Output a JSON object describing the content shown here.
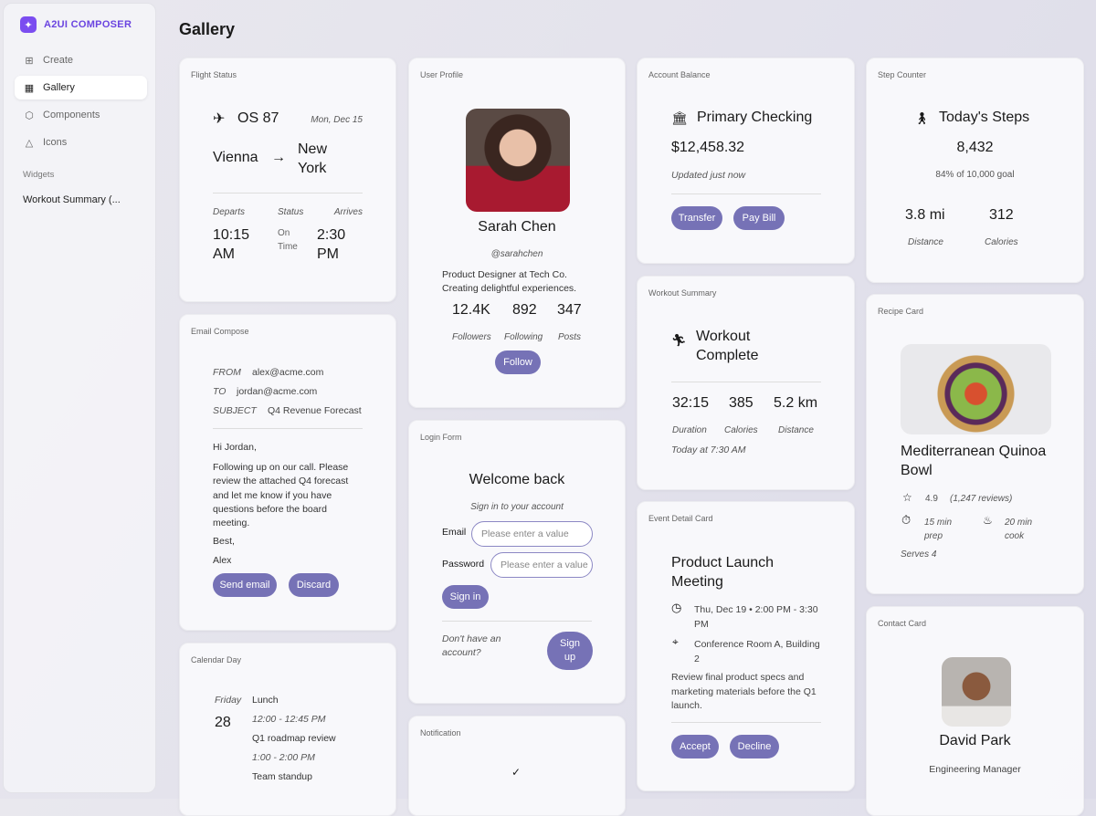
{
  "app": {
    "name": "A2UI COMPOSER",
    "logo_icon": "sparkle-icon"
  },
  "sidebar": {
    "items": [
      {
        "label": "Create",
        "icon": "plus-square-icon"
      },
      {
        "label": "Gallery",
        "icon": "grid-icon",
        "active": true
      },
      {
        "label": "Components",
        "icon": "cube-icon"
      },
      {
        "label": "Icons",
        "icon": "shapes-icon"
      }
    ],
    "section": "Widgets",
    "widgets": [
      "Workout Summary (..."
    ]
  },
  "page": {
    "title": "Gallery"
  },
  "accent": "#7672b6",
  "flight": {
    "title": "Flight Status",
    "number": "OS 87",
    "date": "Mon, Dec 15",
    "from": "Vienna",
    "to": "New York",
    "departs_label": "Departs",
    "status_label": "Status",
    "arrives_label": "Arrives",
    "departs": "10:15 AM",
    "status": "On Time",
    "arrives": "2:30 PM"
  },
  "email": {
    "title": "Email Compose",
    "from_label": "FROM",
    "from": "alex@acme.com",
    "to_label": "TO",
    "to": "jordan@acme.com",
    "subject_label": "SUBJECT",
    "subject": "Q4 Revenue Forecast",
    "greeting": "Hi Jordan,",
    "body": "Following up on our call. Please review the attached Q4 forecast and let me know if you have questions before the board meeting.",
    "closing": "Best,",
    "signature": "Alex",
    "send": "Send email",
    "discard": "Discard"
  },
  "calendar": {
    "title": "Calendar Day",
    "weekday": "Friday",
    "day": "28",
    "events": [
      {
        "name": "Lunch",
        "time": "12:00 - 12:45 PM"
      },
      {
        "name": "Q1 roadmap review",
        "time": "1:00 - 2:00 PM"
      },
      {
        "name": "Team standup"
      }
    ]
  },
  "profile": {
    "title": "User Profile",
    "name": "Sarah Chen",
    "handle": "@sarahchen",
    "bio": "Product Designer at Tech Co. Creating delightful experiences.",
    "stats": [
      {
        "value": "12.4K",
        "label": "Followers"
      },
      {
        "value": "892",
        "label": "Following"
      },
      {
        "value": "347",
        "label": "Posts"
      }
    ],
    "follow": "Follow"
  },
  "login": {
    "title": "Login Form",
    "heading": "Welcome back",
    "subheading": "Sign in to your account",
    "email_label": "Email",
    "email_placeholder": "Please enter a value",
    "password_label": "Password",
    "password_placeholder": "Please enter a value",
    "signin": "Sign in",
    "no_account": "Don't have an account?",
    "signup": "Sign up"
  },
  "notification": {
    "title": "Notification"
  },
  "account": {
    "title": "Account Balance",
    "name": "Primary Checking",
    "balance": "$12,458.32",
    "updated": "Updated just now",
    "transfer": "Transfer",
    "pay": "Pay Bill"
  },
  "workout": {
    "title": "Workout Summary",
    "heading": "Workout Complete",
    "stats": [
      {
        "value": "32:15",
        "label": "Duration"
      },
      {
        "value": "385",
        "label": "Calories"
      },
      {
        "value": "5.2 km",
        "label": "Distance"
      }
    ],
    "when": "Today at 7:30 AM"
  },
  "event": {
    "title": "Event Detail Card",
    "name": "Product Launch Meeting",
    "time": "Thu, Dec 19 • 2:00 PM - 3:30 PM",
    "location": "Conference Room A, Building 2",
    "description": "Review final product specs and marketing materials before the Q1 launch.",
    "accept": "Accept",
    "decline": "Decline"
  },
  "steps": {
    "title": "Step Counter",
    "heading": "Today's Steps",
    "count": "8,432",
    "goal": "84% of 10,000 goal",
    "goal_progress": 0.84,
    "distance": "3.8 mi",
    "distance_label": "Distance",
    "calories": "312",
    "calories_label": "Calories"
  },
  "recipe": {
    "title": "Recipe Card",
    "name": "Mediterranean Quinoa Bowl",
    "rating": "4.9",
    "reviews": "(1,247 reviews)",
    "prep": "15 min prep",
    "cook": "20 min cook",
    "serves": "Serves 4"
  },
  "contact": {
    "title": "Contact Card",
    "name": "David Park",
    "role": "Engineering Manager"
  }
}
